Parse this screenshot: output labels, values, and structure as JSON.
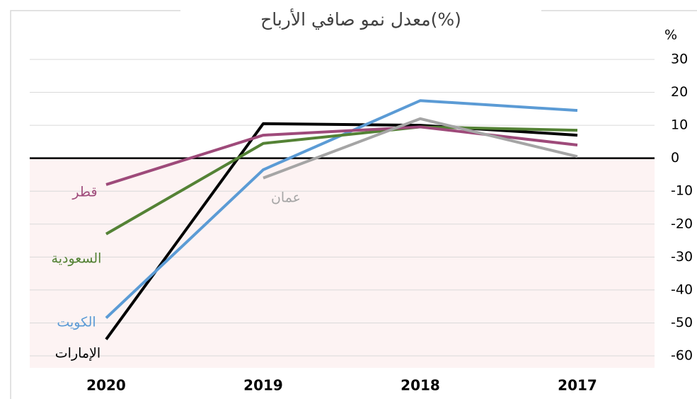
{
  "chart_data": {
    "type": "line",
    "title": "معدل نمو صافي الأرباح(%)",
    "unit_label": "%",
    "categories": [
      "2020",
      "2019",
      "2018",
      "2017"
    ],
    "series": [
      {
        "name": "الإمارات",
        "color": "#000000",
        "values": [
          -55,
          10.5,
          10,
          7
        ]
      },
      {
        "name": "الكويت",
        "color": "#5b9bd5",
        "values": [
          -48.5,
          -3.5,
          17.5,
          14.5
        ]
      },
      {
        "name": "السعودية",
        "color": "#548235",
        "values": [
          -23,
          4.5,
          9.5,
          8.5
        ]
      },
      {
        "name": "قطر",
        "color": "#9e4a7a",
        "values": [
          -8,
          7,
          9.5,
          4
        ]
      },
      {
        "name": "عمان",
        "color": "#a5a5a5",
        "values": [
          null,
          -6,
          12,
          0.5
        ]
      }
    ],
    "ylim": [
      -60,
      30
    ],
    "yticks": [
      30,
      20,
      10,
      0,
      -10,
      -20,
      -30,
      -40,
      -50,
      -60
    ],
    "grid": true
  }
}
